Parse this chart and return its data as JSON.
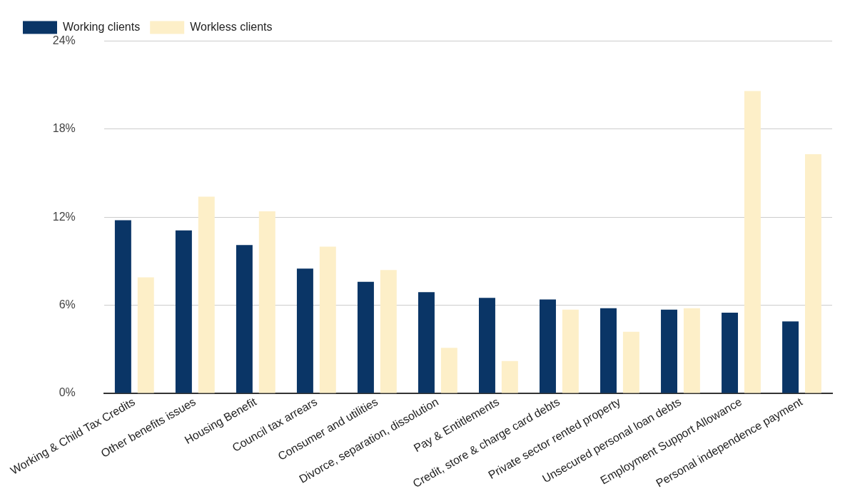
{
  "chart_data": {
    "type": "bar",
    "categories": [
      "Working & Child Tax Credits",
      "Other benefits issues",
      "Housing Benefit",
      "Council tax arrears",
      "Consumer and utilities",
      "Divorce, separation, dissolution",
      "Pay & Entitlements",
      "Credit, store & charge card debts",
      "Private sector rented property",
      "Unsecured personal loan debts",
      "Employment Support Allowance",
      "Personal independence payment"
    ],
    "series": [
      {
        "name": "Working clients",
        "color": "#0a3566",
        "values": [
          11.8,
          11.1,
          10.1,
          8.5,
          7.6,
          6.9,
          6.5,
          6.4,
          5.8,
          5.7,
          5.5,
          4.9
        ]
      },
      {
        "name": "Workless clients",
        "color": "#fdefc8",
        "values": [
          7.9,
          13.4,
          12.4,
          10.0,
          8.4,
          3.1,
          2.2,
          5.7,
          4.2,
          5.8,
          20.6,
          16.3
        ]
      }
    ],
    "ylim": [
      0,
      24
    ],
    "yticks": [
      {
        "value": 0,
        "label": "0%"
      },
      {
        "value": 6,
        "label": "6%"
      },
      {
        "value": 12,
        "label": "12%"
      },
      {
        "value": 18,
        "label": "18%"
      },
      {
        "value": 24,
        "label": "24%"
      }
    ],
    "grid": "y",
    "legend": "top left"
  }
}
